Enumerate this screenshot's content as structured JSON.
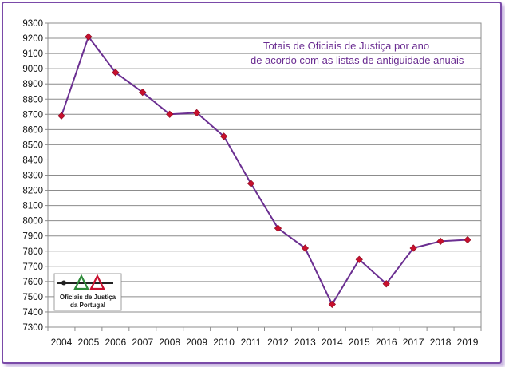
{
  "chart_data": {
    "type": "line",
    "title_lines": [
      "Totais de Oficiais  de Justiça por ano",
      "de acordo com as listas de antiguidade anuais"
    ],
    "x": [
      "2004",
      "2005",
      "2006",
      "2007",
      "2008",
      "2009",
      "2010",
      "2011",
      "2012",
      "2013",
      "2014",
      "2015",
      "2016",
      "2017",
      "2018",
      "2019"
    ],
    "series": [
      {
        "values": [
          8690,
          9210,
          8975,
          8845,
          8700,
          8710,
          8555,
          8245,
          7950,
          7820,
          7450,
          7745,
          7585,
          7820,
          7865,
          7875
        ]
      }
    ],
    "yticks": [
      "7300",
      "7400",
      "7500",
      "7600",
      "7700",
      "7800",
      "7900",
      "8000",
      "8100",
      "8200",
      "8300",
      "8400",
      "8500",
      "8600",
      "8700",
      "8800",
      "8900",
      "9000",
      "9100",
      "9200",
      "9300"
    ],
    "ylim": [
      7300,
      9300
    ],
    "grid": true,
    "line_color": "#6b2f91",
    "marker_color": "#c8102e",
    "frame_color": "#7a4aa8",
    "title_color": "#6a2c91"
  },
  "logo": {
    "text_line1": "Oficiais de Justiça",
    "text_line2": "da Portugal"
  }
}
